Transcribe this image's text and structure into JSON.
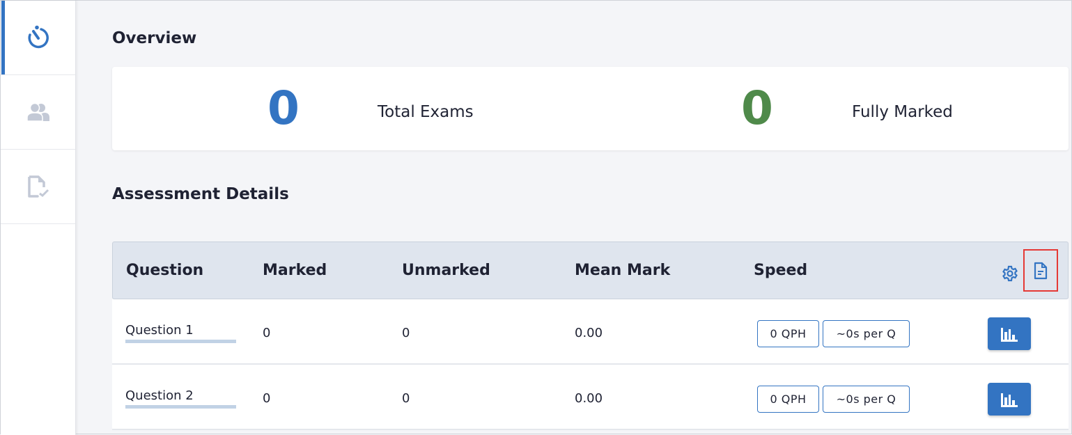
{
  "colors": {
    "accent": "#3374c2",
    "success": "#4f8a4a",
    "highlight": "#e53935"
  },
  "sidebar": {
    "items": [
      {
        "icon": "stopwatch-icon",
        "active": true
      },
      {
        "icon": "users-icon"
      },
      {
        "icon": "file-check-icon"
      }
    ]
  },
  "overview": {
    "title": "Overview",
    "total_exams": {
      "value": "0",
      "label": "Total Exams"
    },
    "fully_marked": {
      "value": "0",
      "label": "Fully Marked"
    }
  },
  "assessment": {
    "title": "Assessment Details",
    "headers": [
      "Question",
      "Marked",
      "Unmarked",
      "Mean Mark",
      "Speed"
    ],
    "header_icons": [
      "gear-icon",
      "document-icon"
    ],
    "rows": [
      {
        "question": "Question 1",
        "marked": "0",
        "unmarked": "0",
        "mean": "0.00",
        "qph": "0 QPH",
        "per_q": "~0s per Q"
      },
      {
        "question": "Question 2",
        "marked": "0",
        "unmarked": "0",
        "mean": "0.00",
        "qph": "0 QPH",
        "per_q": "~0s per Q"
      }
    ]
  }
}
